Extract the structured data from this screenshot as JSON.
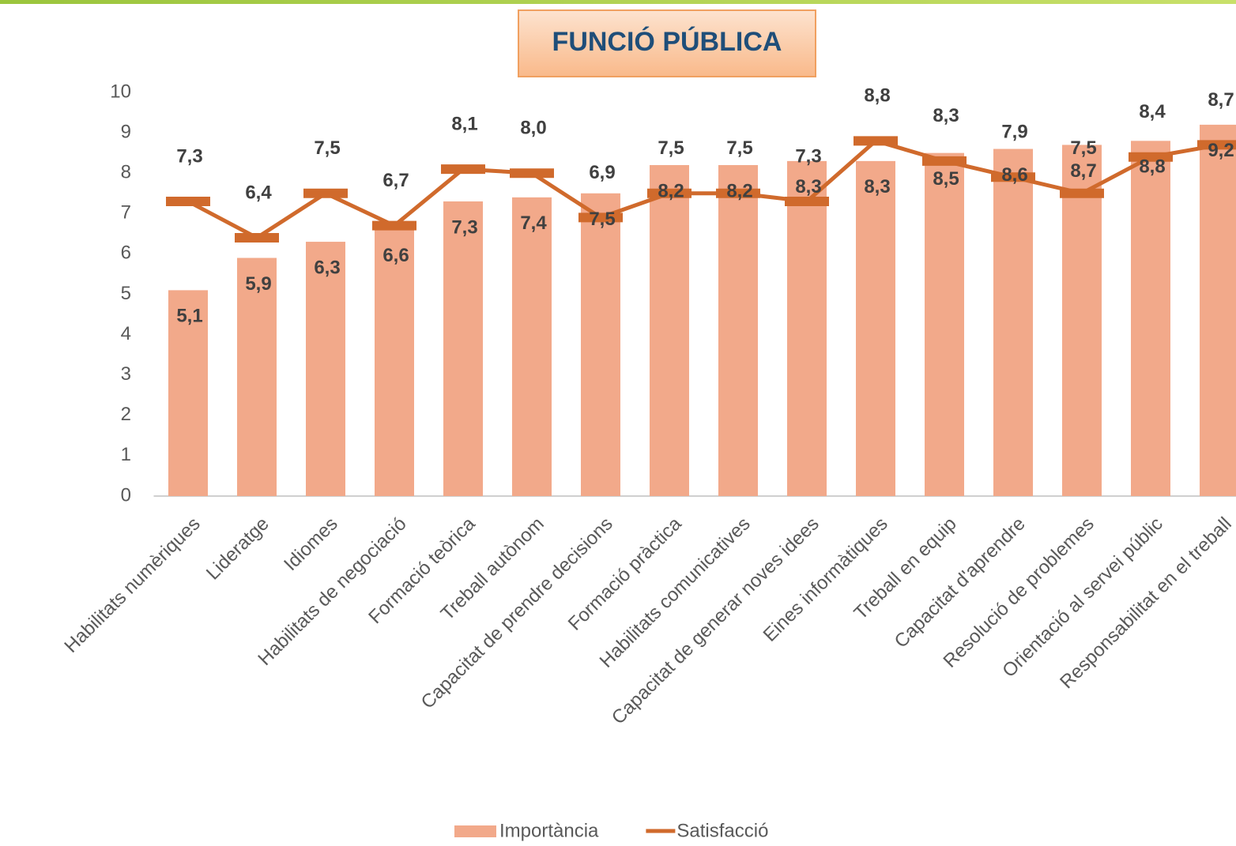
{
  "chart_data": {
    "type": "bar",
    "title": "FUNCIÓ PÚBLICA",
    "categories": [
      "Habilitats numèriques",
      "Lideratge",
      "Idiomes",
      "Habilitats de negociació",
      "Formació teòrica",
      "Treball autònom",
      "Capacitat de prendre decisions",
      "Formació pràctica",
      "Habilitats comunicatives",
      "Capacitat de generar noves idees",
      "Eines informàtiques",
      "Treball en equip",
      "Capacitat d'aprendre",
      "Resolució de problemes",
      "Orientació al servei públic",
      "Responsabilitat en el treball"
    ],
    "series": [
      {
        "name": "Importància",
        "type": "bar",
        "color": "#f2a98a",
        "values": [
          5.1,
          5.9,
          6.3,
          6.6,
          7.3,
          7.4,
          7.5,
          8.2,
          8.2,
          8.3,
          8.3,
          8.5,
          8.6,
          8.7,
          8.8,
          9.2
        ],
        "value_labels": [
          "5,1",
          "5,9",
          "6,3",
          "6,6",
          "7,3",
          "7,4",
          "7,5",
          "8,2",
          "8,2",
          "8,3",
          "8,3",
          "8,5",
          "8,6",
          "8,7",
          "8,8",
          "9,2"
        ]
      },
      {
        "name": "Satisfacció",
        "type": "line",
        "color": "#d06a2c",
        "values": [
          7.3,
          6.4,
          7.5,
          6.7,
          8.1,
          8.0,
          6.9,
          7.5,
          7.5,
          7.3,
          8.8,
          8.3,
          7.9,
          7.5,
          8.4,
          8.7
        ],
        "value_labels": [
          "7,3",
          "6,4",
          "7,5",
          "6,7",
          "8,1",
          "8,0",
          "6,9",
          "7,5",
          "7,5",
          "7,3",
          "8,8",
          "8,3",
          "7,9",
          "7,5",
          "8,4",
          "8,7"
        ]
      }
    ],
    "ylim": [
      0,
      10
    ],
    "yticks": [
      0,
      1,
      2,
      3,
      4,
      5,
      6,
      7,
      8,
      9,
      10
    ],
    "grid": false,
    "legend": "bottom"
  }
}
